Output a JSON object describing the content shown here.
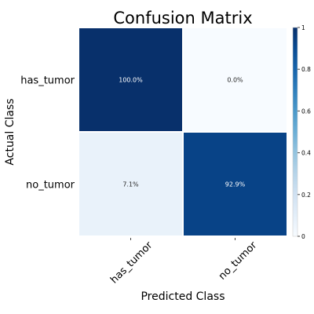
{
  "chart_data": {
    "type": "heatmap",
    "title": "Confusion Matrix",
    "xlabel": "Predicted Class",
    "ylabel": "Actual Class",
    "x_categories": [
      "has_tumor",
      "no_tumor"
    ],
    "y_categories": [
      "has_tumor",
      "no_tumor"
    ],
    "values": [
      [
        1.0,
        0.0
      ],
      [
        0.071,
        0.929
      ]
    ],
    "cell_labels": [
      [
        "100.0%",
        "0.0%"
      ],
      [
        "7.1%",
        "92.9%"
      ]
    ],
    "colorbar": {
      "range": [
        0,
        1
      ],
      "ticks": [
        0,
        0.2,
        0.4,
        0.6,
        0.8,
        1
      ],
      "tick_labels": [
        "0",
        "0.2",
        "0.4",
        "0.6",
        "0.8",
        "1"
      ],
      "colormap": "Blues"
    },
    "grid": false
  }
}
